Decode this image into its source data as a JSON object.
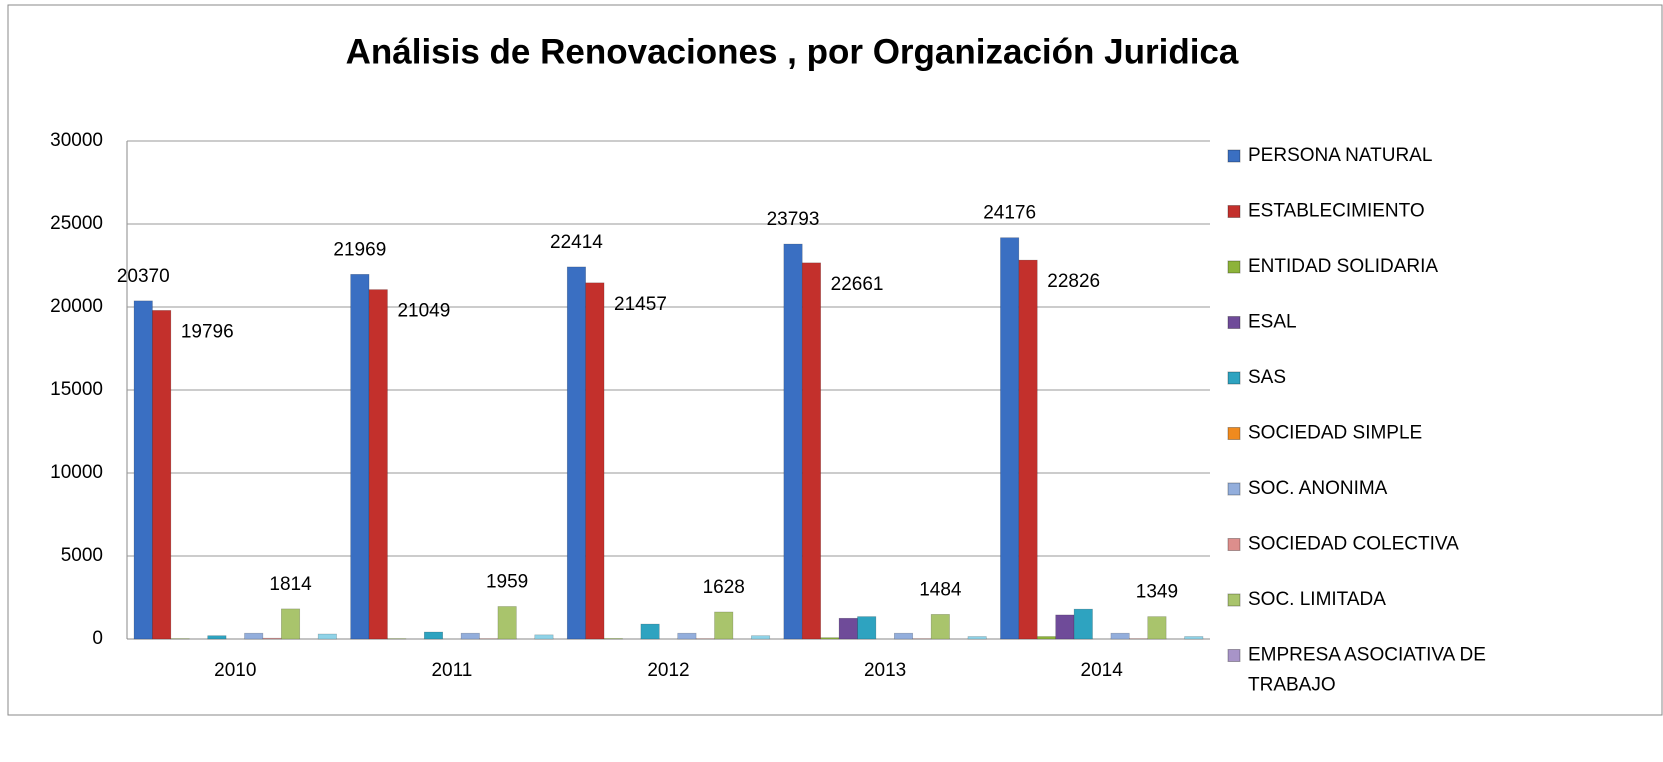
{
  "chart_data": {
    "type": "bar",
    "title": "Análisis de Renovaciones , por Organización Juridica",
    "categories": [
      "2010",
      "2011",
      "2012",
      "2013",
      "2014"
    ],
    "series": [
      {
        "name": "PERSONA NATURAL",
        "color": "#3a6fc2",
        "values": [
          20370,
          21969,
          22414,
          23793,
          24176
        ],
        "show_labels": true
      },
      {
        "name": "ESTABLECIMIENTO",
        "color": "#c3302c",
        "values": [
          19796,
          21049,
          21457,
          22661,
          22826
        ],
        "show_labels": true
      },
      {
        "name": "ENTIDAD SOLIDARIA",
        "color": "#8db33a",
        "values": [
          20,
          20,
          30,
          80,
          150
        ]
      },
      {
        "name": "ESAL",
        "color": "#6f4b99",
        "values": [
          0,
          0,
          0,
          1250,
          1450
        ]
      },
      {
        "name": "SAS",
        "color": "#2ea3c0",
        "values": [
          200,
          420,
          900,
          1350,
          1800
        ]
      },
      {
        "name": "SOCIEDAD SIMPLE",
        "color": "#f08a1e",
        "values": [
          0,
          0,
          0,
          0,
          0
        ]
      },
      {
        "name": "SOC. ANONIMA",
        "color": "#93aedc",
        "values": [
          350,
          350,
          350,
          350,
          350
        ]
      },
      {
        "name": "SOCIEDAD COLECTIVA",
        "color": "#dd8e8c",
        "values": [
          50,
          20,
          20,
          20,
          20
        ]
      },
      {
        "name": "SOC. LIMITADA",
        "color": "#a9c46c",
        "values": [
          1814,
          1959,
          1628,
          1484,
          1349
        ],
        "show_labels": true
      },
      {
        "name": "EMPRESA ASOCIATIVA DE TRABAJO",
        "color": "#a894c8",
        "values": [
          0,
          0,
          0,
          0,
          0
        ]
      },
      {
        "name": null,
        "color": "#8fd3e8",
        "values": [
          300,
          250,
          200,
          150,
          150
        ]
      }
    ],
    "ylim": [
      0,
      30000
    ],
    "yticks": [
      0,
      5000,
      10000,
      15000,
      20000,
      25000,
      30000
    ],
    "grid": true,
    "legend": "right"
  }
}
